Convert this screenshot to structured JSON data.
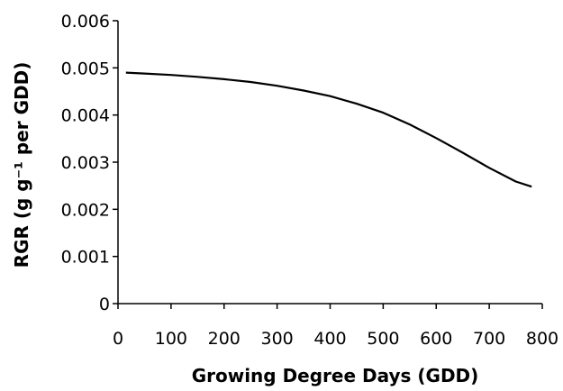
{
  "chart_data": {
    "type": "line",
    "title": "",
    "xlabel": "Growing Degree Days (GDD)",
    "ylabel": "RGR (g g⁻¹ per GDD)",
    "xlim": [
      0,
      800
    ],
    "ylim": [
      0,
      0.006
    ],
    "x_ticks": [
      0,
      100,
      200,
      300,
      400,
      500,
      600,
      700,
      800
    ],
    "y_ticks": [
      0,
      0.001,
      0.002,
      0.003,
      0.004,
      0.005,
      0.006
    ],
    "x_tick_labels": [
      "0",
      "100",
      "200",
      "300",
      "400",
      "500",
      "600",
      "700",
      "800"
    ],
    "y_tick_labels": [
      "0",
      "0.001",
      "0.002",
      "0.003",
      "0.004",
      "0.005",
      "0.006"
    ],
    "grid": false,
    "legend": "none",
    "line_color": "#000000",
    "series": [
      {
        "x": [
          15,
          50,
          100,
          150,
          200,
          250,
          300,
          350,
          400,
          450,
          500,
          550,
          600,
          650,
          700,
          750,
          780
        ],
        "y": [
          0.0049,
          0.00488,
          0.00485,
          0.00481,
          0.00476,
          0.0047,
          0.00462,
          0.00452,
          0.0044,
          0.00424,
          0.00405,
          0.0038,
          0.00351,
          0.0032,
          0.00288,
          0.00259,
          0.00248
        ]
      }
    ]
  }
}
